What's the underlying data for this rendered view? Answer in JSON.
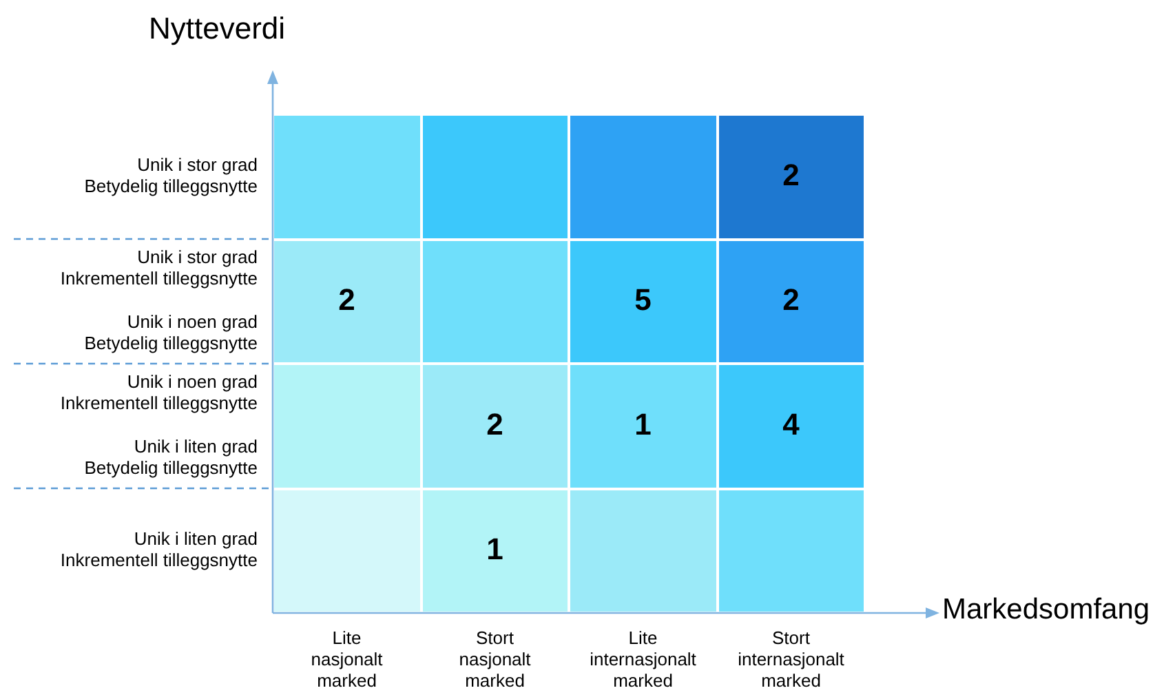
{
  "chart_data": {
    "type": "heatmap",
    "data_labels": true,
    "xlabel": "Markedsomfang",
    "ylabel": "Nytteverdi",
    "categories": [
      "Lite\nnasjonalt\nmarked",
      "Stort\nnasjonalt\nmarked",
      "Lite\ninternasjonalt\nmarked",
      "Stort\ninternasjonalt\nmarked"
    ],
    "y_categories": [
      "Unik i stor grad\nBetydelig tilleggsnytte",
      "Unik i stor grad\nInkrementell tilleggsnytte\n\nUnik i noen grad\nBetydelig tilleggsnytte",
      "Unik i noen grad\nInkrementell tilleggsnytte\n\nUnik i liten grad\nBetydelig tilleggsnytte",
      "Unik i liten grad\nInkrementell tilleggsnytte"
    ],
    "cells": [
      [
        null,
        null,
        null,
        2
      ],
      [
        2,
        null,
        5,
        2
      ],
      [
        null,
        2,
        1,
        4
      ],
      [
        null,
        1,
        null,
        null
      ]
    ],
    "colors": [
      [
        "#6fdffb",
        "#3cc8fb",
        "#2ea2f4",
        "#1e78d0"
      ],
      [
        "#9beaf8",
        "#6fdffb",
        "#3cc8fb",
        "#2ea2f4"
      ],
      [
        "#b2f4f7",
        "#9beaf8",
        "#6fdffb",
        "#3cc8fb"
      ],
      [
        "#d4f8fa",
        "#b2f4f7",
        "#9beaf8",
        "#6fdffb"
      ]
    ]
  }
}
